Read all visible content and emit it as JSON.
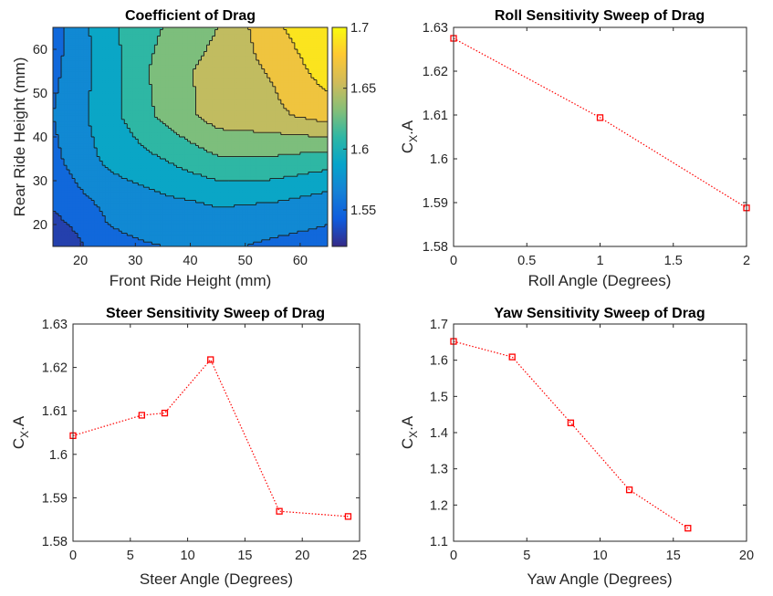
{
  "chart_data": [
    {
      "type": "heatmap",
      "title": "Coefficient of Drag",
      "xlabel": "Front Ride Height (mm)",
      "ylabel": "Rear Ride Height (mm)",
      "x": [
        15,
        25,
        35,
        45,
        55,
        65
      ],
      "y": [
        15,
        25,
        35,
        45,
        55,
        65
      ],
      "z": [
        [
          1.52,
          1.555,
          1.56,
          1.565,
          1.555,
          1.55
        ],
        [
          1.545,
          1.565,
          1.575,
          1.582,
          1.58,
          1.57
        ],
        [
          1.555,
          1.585,
          1.6,
          1.618,
          1.618,
          1.61
        ],
        [
          1.56,
          1.592,
          1.625,
          1.65,
          1.655,
          1.67
        ],
        [
          1.555,
          1.59,
          1.63,
          1.648,
          1.662,
          1.69
        ],
        [
          1.55,
          1.595,
          1.62,
          1.64,
          1.675,
          1.7
        ]
      ],
      "xlim": [
        15,
        65
      ],
      "ylim": [
        15,
        65
      ],
      "xticks": [
        "20",
        "30",
        "40",
        "50",
        "60"
      ],
      "yticks": [
        "20",
        "30",
        "40",
        "50",
        "60"
      ],
      "colorbar": {
        "clim": [
          1.52,
          1.7
        ],
        "ticks": [
          "1.55",
          "1.6",
          "1.65",
          "1.7"
        ]
      }
    },
    {
      "type": "line",
      "title": "Roll Sensitivity Sweep of Drag",
      "xlabel": "Roll Angle (Degrees)",
      "ylabel_main": "C",
      "ylabel_sub": "X",
      "ylabel_tail": ".A",
      "x": [
        0,
        1,
        2
      ],
      "values": [
        1.6275,
        1.6094,
        1.5888
      ],
      "xlim": [
        0,
        2
      ],
      "ylim": [
        1.58,
        1.63
      ],
      "xticks": [
        "0",
        "0.5",
        "1",
        "1.5",
        "2"
      ],
      "yticks": [
        "1.58",
        "1.59",
        "1.6",
        "1.61",
        "1.62",
        "1.63"
      ]
    },
    {
      "type": "line",
      "title": "Steer Sensitivity Sweep of Drag",
      "xlabel": "Steer Angle (Degrees)",
      "ylabel_main": "C",
      "ylabel_sub": "X",
      "ylabel_tail": ".A",
      "x": [
        0,
        6,
        8,
        12,
        18,
        24
      ],
      "values": [
        1.6043,
        1.609,
        1.6095,
        1.6218,
        1.5869,
        1.5857
      ],
      "xlim": [
        0,
        25
      ],
      "ylim": [
        1.58,
        1.63
      ],
      "xticks": [
        "0",
        "5",
        "10",
        "15",
        "20",
        "25"
      ],
      "yticks": [
        "1.58",
        "1.59",
        "1.6",
        "1.61",
        "1.62",
        "1.63"
      ]
    },
    {
      "type": "line",
      "title": "Yaw Sensitivity Sweep of Drag",
      "xlabel": "Yaw Angle (Degrees)",
      "ylabel_main": "C",
      "ylabel_sub": "X",
      "ylabel_tail": ".A",
      "x": [
        0,
        4,
        8,
        12,
        16
      ],
      "values": [
        1.652,
        1.609,
        1.427,
        1.242,
        1.136
      ],
      "xlim": [
        0,
        20
      ],
      "ylim": [
        1.1,
        1.7
      ],
      "xticks": [
        "0",
        "5",
        "10",
        "15",
        "20"
      ],
      "yticks": [
        "1.1",
        "1.2",
        "1.3",
        "1.4",
        "1.5",
        "1.6",
        "1.7"
      ]
    }
  ],
  "colors": {
    "series_line": "#ff0000",
    "axis": "#262626",
    "contour_line": "#1a1a1a",
    "parula": [
      "#352a87",
      "#0f5cdd",
      "#1481d6",
      "#06a4ca",
      "#2eb7a4",
      "#87bf77",
      "#d1bb59",
      "#fec832",
      "#f9fb0e"
    ]
  }
}
